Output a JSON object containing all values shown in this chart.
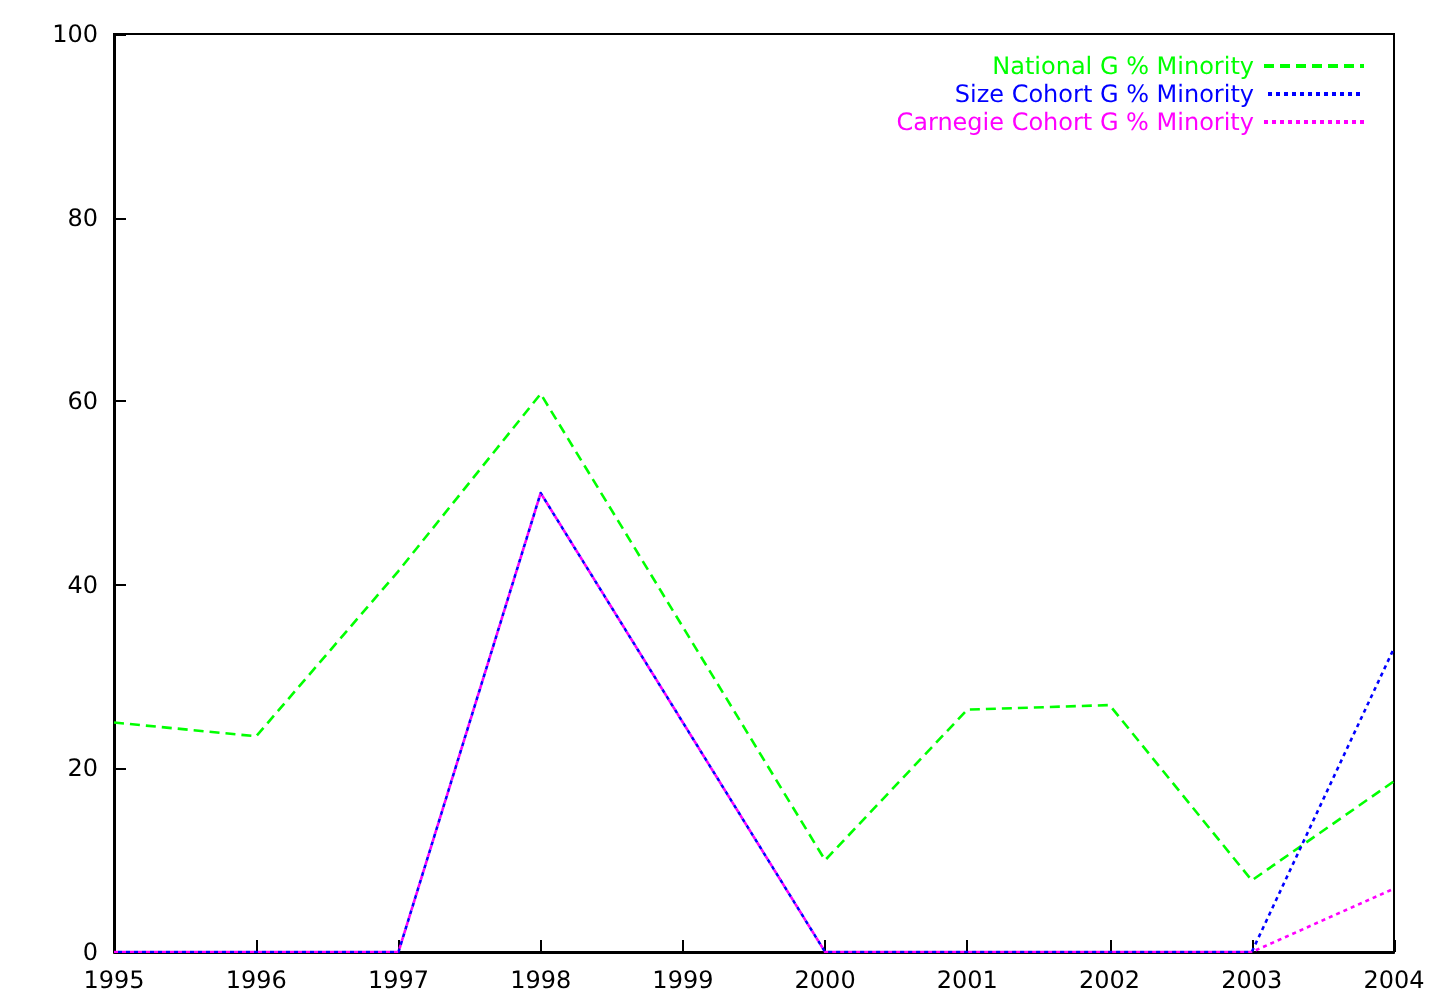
{
  "chart_data": {
    "type": "line",
    "x": [
      1995,
      1996,
      1997,
      1998,
      1999,
      2000,
      2001,
      2002,
      2003,
      2004
    ],
    "series": [
      {
        "name": "National G % Minority",
        "color": "#00ff00",
        "line_style": "dashed",
        "values": [
          25,
          23.5,
          41.5,
          60.8,
          35.4,
          10,
          26.4,
          26.9,
          7.8,
          18.6
        ]
      },
      {
        "name": "Size Cohort G % Minority",
        "color": "#0000ff",
        "line_style": "dotted",
        "values": [
          0,
          0,
          0,
          50,
          25,
          0,
          0,
          0,
          0,
          33.1
        ]
      },
      {
        "name": "Carnegie Cohort G % Minority",
        "color": "#ff00ff",
        "line_style": "dotted",
        "values": [
          0,
          0,
          0,
          50,
          25,
          0,
          0,
          0,
          0,
          6.9
        ]
      }
    ],
    "xlim": [
      1995,
      2004
    ],
    "xticks": [
      1995,
      1996,
      1997,
      1998,
      1999,
      2000,
      2001,
      2002,
      2003,
      2004
    ],
    "ylim": [
      0,
      100
    ],
    "yticks": [
      0,
      20,
      40,
      60,
      80,
      100
    ],
    "grid": false,
    "legend": "top right",
    "marker": "none"
  }
}
